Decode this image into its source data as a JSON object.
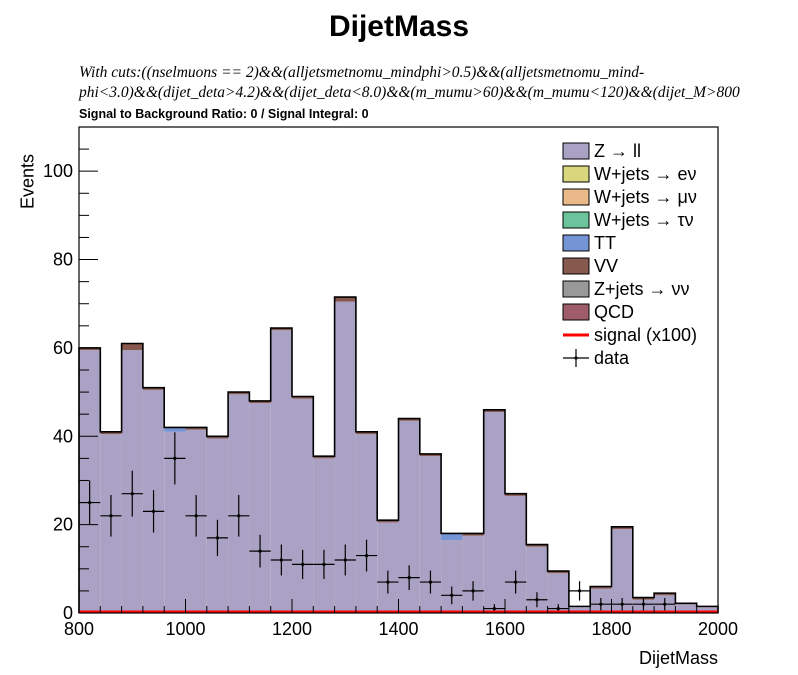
{
  "title": "DijetMass",
  "cuts_line1": "With cuts:((nselmuons == 2)&&(alljetsmetnomu_mindphi>0.5)&&(alljetsmetnomu_mind-",
  "cuts_line2": "phi<3.0)&&(dijet_deta>4.2)&&(dijet_deta<8.0)&&(m_mumu>60)&&(m_mumu<120)&&(dijet_M>800",
  "ratio_text": "Signal to Background Ratio: 0 / Signal Integral: 0",
  "chart_data": {
    "type": "bar",
    "title": "DijetMass",
    "xlabel": "DijetMass",
    "ylabel": "Events",
    "xlim": [
      800,
      2000
    ],
    "ylim": [
      0,
      110
    ],
    "xticks": [
      800,
      1000,
      1200,
      1400,
      1600,
      1800,
      2000
    ],
    "yticks": [
      0,
      20,
      40,
      60,
      80,
      100
    ],
    "bin_edges": [
      800,
      840,
      880,
      920,
      960,
      1000,
      1040,
      1080,
      1120,
      1160,
      1200,
      1240,
      1280,
      1320,
      1360,
      1400,
      1440,
      1480,
      1520,
      1560,
      1600,
      1640,
      1680,
      1720,
      1760,
      1800,
      1840,
      1880,
      1920,
      1960,
      2000
    ],
    "stack_total": [
      60,
      41,
      61,
      51,
      42,
      42,
      40,
      50,
      48,
      64.5,
      49,
      35.5,
      71.5,
      41,
      21,
      44,
      36,
      18,
      18,
      46,
      27,
      15.5,
      9.5,
      1.5,
      6,
      19.5,
      3.5,
      4.5,
      2.2,
      1.5
    ],
    "series": [
      {
        "name": "Z → ll",
        "color": "#aaa2c4",
        "values": [
          59.5,
          40.5,
          59.5,
          50.5,
          41,
          41.5,
          39.5,
          49.5,
          47.5,
          64,
          48.5,
          35,
          70.5,
          40.5,
          20.5,
          43.5,
          35.5,
          16.5,
          17.5,
          45.5,
          26.5,
          15,
          9,
          1.5,
          5.5,
          19,
          3,
          4,
          2,
          1.3
        ]
      },
      {
        "name": "W+jets → eν",
        "color": "#d9d67e",
        "values": [
          0,
          0,
          0,
          0,
          0,
          0,
          0,
          0,
          0,
          0,
          0,
          0,
          0,
          0,
          0,
          0,
          0,
          0,
          0,
          0,
          0,
          0,
          0,
          0,
          0,
          0,
          0,
          0,
          0,
          0
        ]
      },
      {
        "name": "W+jets → μν",
        "color": "#e9b98a",
        "values": [
          0,
          0,
          0,
          0,
          0,
          0,
          0,
          0,
          0,
          0,
          0,
          0,
          0,
          0,
          0,
          0,
          0,
          0,
          0,
          0,
          0,
          0,
          0,
          0,
          0,
          0,
          0,
          0,
          0,
          0
        ]
      },
      {
        "name": "W+jets → τν",
        "color": "#6cc49c",
        "values": [
          0,
          0,
          0,
          0,
          0,
          0,
          0,
          0,
          0,
          0,
          0,
          0,
          0,
          0,
          0,
          0,
          0,
          0,
          0,
          0,
          0,
          0,
          0,
          0,
          0,
          0,
          0,
          0,
          0,
          0
        ]
      },
      {
        "name": "TT",
        "color": "#7594d6",
        "values": [
          0,
          0,
          0,
          0,
          1,
          0,
          0,
          0,
          0,
          0,
          0,
          0,
          0,
          0,
          0,
          0,
          0,
          1.5,
          0,
          0,
          0,
          0,
          0,
          0,
          0,
          0,
          0,
          0,
          0,
          0
        ]
      },
      {
        "name": "VV",
        "color": "#86584e",
        "values": [
          0.5,
          0.5,
          1.5,
          0.5,
          0,
          0.5,
          0.5,
          0.5,
          0.5,
          0.5,
          0.5,
          0.5,
          1,
          0.5,
          0.5,
          0.5,
          0.5,
          0,
          0.5,
          0.5,
          0.5,
          0.5,
          0.5,
          0,
          0.5,
          0.5,
          0.5,
          0.5,
          0.2,
          0.2
        ]
      },
      {
        "name": "Z+jets → νν",
        "color": "#999999",
        "values": [
          0,
          0,
          0,
          0,
          0,
          0,
          0,
          0,
          0,
          0,
          0,
          0,
          0,
          0,
          0,
          0,
          0,
          0,
          0,
          0,
          0,
          0,
          0,
          0,
          0,
          0,
          0,
          0,
          0,
          0
        ]
      },
      {
        "name": "QCD",
        "color": "#9e5d68",
        "values": [
          0,
          0,
          0,
          0,
          0,
          0,
          0,
          0,
          0,
          0,
          0,
          0,
          0,
          0,
          0,
          0,
          0,
          0,
          0,
          0,
          0,
          0,
          0,
          0,
          0,
          0,
          0,
          0,
          0,
          0
        ]
      },
      {
        "name": "signal (x100)",
        "color": "#ff0000",
        "values": [
          0,
          0,
          0,
          0,
          0,
          0,
          0,
          0,
          0,
          0,
          0,
          0,
          0,
          0,
          0,
          0,
          0,
          0,
          0,
          0,
          0,
          0,
          0,
          0,
          0,
          0,
          0,
          0,
          0,
          0
        ]
      }
    ],
    "data_points": {
      "name": "data",
      "x": [
        820,
        860,
        900,
        940,
        980,
        1020,
        1060,
        1100,
        1140,
        1180,
        1220,
        1260,
        1300,
        1340,
        1380,
        1420,
        1460,
        1500,
        1540,
        1580,
        1620,
        1660,
        1700,
        1740,
        1780,
        1820,
        1860,
        1900
      ],
      "y": [
        25,
        22,
        27,
        23,
        35,
        22,
        17,
        22,
        14,
        12,
        11,
        11,
        12,
        13,
        7,
        8,
        7,
        4,
        5,
        1,
        7,
        3,
        1,
        5,
        2,
        2,
        2,
        2
      ],
      "yerr": [
        5,
        4.7,
        5.2,
        4.8,
        5.9,
        4.7,
        4.1,
        4.7,
        3.7,
        3.5,
        3.3,
        3.3,
        3.5,
        3.6,
        2.6,
        2.8,
        2.6,
        2,
        2.2,
        1,
        2.6,
        1.7,
        1,
        2.2,
        1.4,
        1.4,
        1.4,
        1.4
      ]
    },
    "legend": {
      "placement": "top-right"
    }
  }
}
